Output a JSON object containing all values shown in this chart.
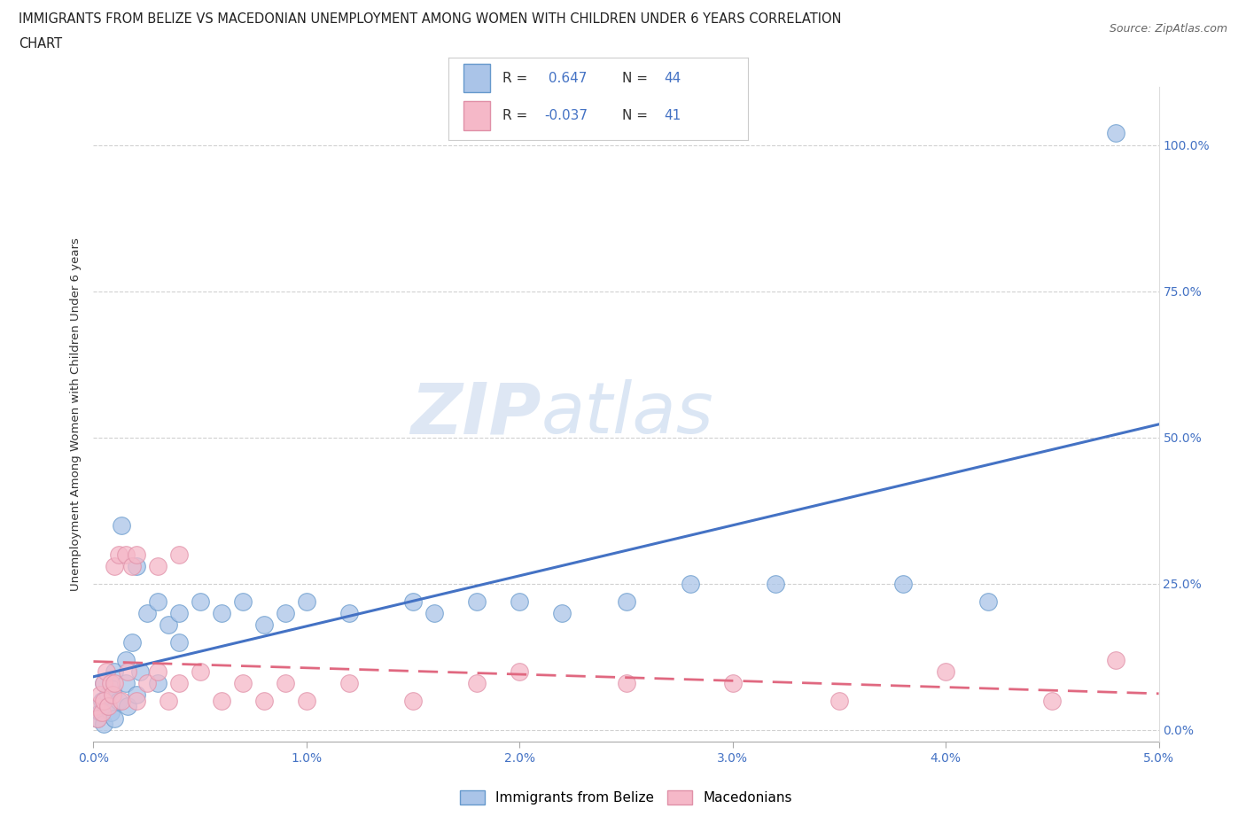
{
  "title_line1": "IMMIGRANTS FROM BELIZE VS MACEDONIAN UNEMPLOYMENT AMONG WOMEN WITH CHILDREN UNDER 6 YEARS CORRELATION",
  "title_line2": "CHART",
  "source": "Source: ZipAtlas.com",
  "ylabel": "Unemployment Among Women with Children Under 6 years",
  "xlim": [
    0.0,
    0.05
  ],
  "ylim": [
    -0.02,
    1.1
  ],
  "x_ticks": [
    0.0,
    0.01,
    0.02,
    0.03,
    0.04,
    0.05
  ],
  "x_tick_labels": [
    "0.0%",
    "1.0%",
    "2.0%",
    "3.0%",
    "4.0%",
    "5.0%"
  ],
  "y_ticks": [
    0.0,
    0.25,
    0.5,
    0.75,
    1.0
  ],
  "y_tick_labels": [
    "0.0%",
    "25.0%",
    "50.0%",
    "75.0%",
    "100.0%"
  ],
  "belize_color": "#aac4e8",
  "belize_edge_color": "#6699cc",
  "macedonian_color": "#f5b8c8",
  "macedonian_edge_color": "#e090a8",
  "belize_line_color": "#4472c4",
  "macedonian_line_color": "#e06880",
  "R_belize": 0.647,
  "N_belize": 44,
  "R_macedonian": -0.037,
  "N_macedonian": 41,
  "legend_r_color": "#4472c4",
  "watermark_zip": "ZIP",
  "watermark_atlas": "atlas",
  "belize_scatter_x": [
    0.0002,
    0.0003,
    0.0004,
    0.0005,
    0.0005,
    0.0006,
    0.0007,
    0.0008,
    0.0009,
    0.001,
    0.001,
    0.0012,
    0.0013,
    0.0015,
    0.0015,
    0.0016,
    0.0018,
    0.002,
    0.002,
    0.0022,
    0.0025,
    0.003,
    0.003,
    0.0035,
    0.004,
    0.004,
    0.005,
    0.006,
    0.007,
    0.008,
    0.009,
    0.01,
    0.012,
    0.015,
    0.016,
    0.018,
    0.02,
    0.022,
    0.025,
    0.028,
    0.032,
    0.038,
    0.042,
    0.048
  ],
  "belize_scatter_y": [
    0.02,
    0.03,
    0.05,
    0.01,
    0.08,
    0.04,
    0.06,
    0.03,
    0.07,
    0.02,
    0.1,
    0.05,
    0.35,
    0.08,
    0.12,
    0.04,
    0.15,
    0.06,
    0.28,
    0.1,
    0.2,
    0.08,
    0.22,
    0.18,
    0.2,
    0.15,
    0.22,
    0.2,
    0.22,
    0.18,
    0.2,
    0.22,
    0.2,
    0.22,
    0.2,
    0.22,
    0.22,
    0.2,
    0.22,
    0.25,
    0.25,
    0.25,
    0.22,
    1.02
  ],
  "macedonian_scatter_x": [
    0.0001,
    0.0002,
    0.0003,
    0.0004,
    0.0005,
    0.0005,
    0.0006,
    0.0007,
    0.0008,
    0.0009,
    0.001,
    0.001,
    0.0012,
    0.0013,
    0.0015,
    0.0016,
    0.0018,
    0.002,
    0.002,
    0.0025,
    0.003,
    0.003,
    0.0035,
    0.004,
    0.004,
    0.005,
    0.006,
    0.007,
    0.008,
    0.009,
    0.01,
    0.012,
    0.015,
    0.018,
    0.02,
    0.025,
    0.03,
    0.035,
    0.04,
    0.045,
    0.048
  ],
  "macedonian_scatter_y": [
    0.04,
    0.02,
    0.06,
    0.03,
    0.08,
    0.05,
    0.1,
    0.04,
    0.08,
    0.06,
    0.28,
    0.08,
    0.3,
    0.05,
    0.3,
    0.1,
    0.28,
    0.05,
    0.3,
    0.08,
    0.28,
    0.1,
    0.05,
    0.3,
    0.08,
    0.1,
    0.05,
    0.08,
    0.05,
    0.08,
    0.05,
    0.08,
    0.05,
    0.08,
    0.1,
    0.08,
    0.08,
    0.05,
    0.1,
    0.05,
    0.12
  ]
}
